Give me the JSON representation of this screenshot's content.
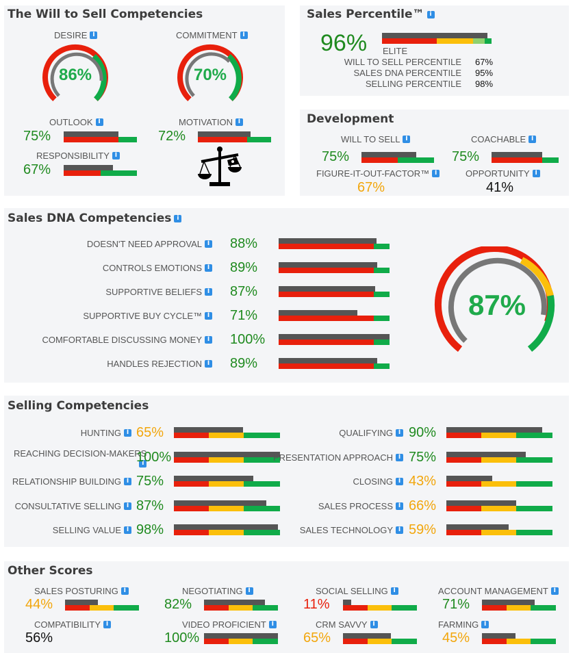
{
  "colors": {
    "red": "#e8200c",
    "orange": "#fbbf0b",
    "green": "#10ab49",
    "gray": "#555555",
    "light_green": "#8fd16f",
    "info": "#2f8ee5"
  },
  "will_to_sell": {
    "title": "The Will to Sell Competencies",
    "desire": {
      "label": "DESIRE",
      "value": "86%",
      "fraction": 0.86
    },
    "commitment": {
      "label": "COMMITMENT",
      "value": "70%",
      "fraction": 0.7
    },
    "outlook": {
      "label": "OUTLOOK",
      "value": "75%",
      "fraction": 0.75
    },
    "motivation": {
      "label": "MOTIVATION",
      "value": "72%",
      "fraction": 0.72
    },
    "responsibility": {
      "label": "RESPONSIBILITY",
      "value": "67%",
      "fraction": 0.67
    },
    "scale_icon": "balance-scale-icon"
  },
  "percentile": {
    "title": "Sales Percentile™",
    "value": "96%",
    "fraction": 0.96,
    "tier": "ELITE",
    "rows": [
      {
        "label": "WILL TO SELL PERCENTILE",
        "value": "67%"
      },
      {
        "label": "SALES DNA PERCENTILE",
        "value": "95%"
      },
      {
        "label": "SELLING PERCENTILE",
        "value": "98%"
      }
    ]
  },
  "development": {
    "title": "Development",
    "will_to_sell": {
      "label": "WILL TO SELL",
      "value": "75%",
      "fraction": 0.75
    },
    "coachable": {
      "label": "COACHABLE",
      "value": "75%",
      "fraction": 0.75
    },
    "figure_it_out": {
      "label": "FIGURE-IT-OUT-FACTOR™",
      "value": "67%"
    },
    "opportunity": {
      "label": "OPPORTUNITY",
      "value": "41%"
    }
  },
  "sales_dna": {
    "title": "Sales DNA Competencies",
    "overall": "87%",
    "overall_fraction": 0.87,
    "items": [
      {
        "label": "DOESN'T NEED APPROVAL",
        "value": "88%",
        "fraction": 0.88
      },
      {
        "label": "CONTROLS EMOTIONS",
        "value": "89%",
        "fraction": 0.89
      },
      {
        "label": "SUPPORTIVE BELIEFS",
        "value": "87%",
        "fraction": 0.87
      },
      {
        "label": "SUPPORTIVE BUY CYCLE™",
        "value": "71%",
        "fraction": 0.71
      },
      {
        "label": "COMFORTABLE DISCUSSING MONEY",
        "value": "100%",
        "fraction": 1.0
      },
      {
        "label": "HANDLES REJECTION",
        "value": "89%",
        "fraction": 0.89
      }
    ]
  },
  "selling": {
    "title": "Selling Competencies",
    "left": [
      {
        "label": "HUNTING",
        "value": "65%",
        "fraction": 0.65,
        "color": "orange"
      },
      {
        "label": "REACHING DECISION-MAKERS",
        "value": "100%",
        "fraction": 1.0,
        "color": "green"
      },
      {
        "label": "RELATIONSHIP BUILDING",
        "value": "75%",
        "fraction": 0.75,
        "color": "green"
      },
      {
        "label": "CONSULTATIVE SELLING",
        "value": "87%",
        "fraction": 0.87,
        "color": "green"
      },
      {
        "label": "SELLING VALUE",
        "value": "98%",
        "fraction": 0.98,
        "color": "green"
      }
    ],
    "right": [
      {
        "label": "QUALIFYING",
        "value": "90%",
        "fraction": 0.9,
        "color": "green"
      },
      {
        "label": "PRESENTATION APPROACH",
        "value": "75%",
        "fraction": 0.75,
        "color": "green"
      },
      {
        "label": "CLOSING",
        "value": "43%",
        "fraction": 0.43,
        "color": "orange"
      },
      {
        "label": "SALES PROCESS",
        "value": "66%",
        "fraction": 0.66,
        "color": "orange"
      },
      {
        "label": "SALES TECHNOLOGY",
        "value": "59%",
        "fraction": 0.59,
        "color": "orange"
      }
    ]
  },
  "other": {
    "title": "Other Scores",
    "items": [
      {
        "label": "SALES POSTURING",
        "value": "44%",
        "fraction": 0.44,
        "color": "orange"
      },
      {
        "label": "NEGOTIATING",
        "value": "82%",
        "fraction": 0.82,
        "color": "green"
      },
      {
        "label": "SOCIAL SELLING",
        "value": "11%",
        "fraction": 0.11,
        "color": "red"
      },
      {
        "label": "ACCOUNT MANAGEMENT",
        "value": "71%",
        "fraction": 0.71,
        "color": "green"
      },
      {
        "label": "COMPATIBILITY",
        "value": "56%",
        "fraction": null,
        "color": "black"
      },
      {
        "label": "VIDEO PROFICIENT",
        "value": "100%",
        "fraction": 1.0,
        "color": "green"
      },
      {
        "label": "CRM SAVVY",
        "value": "65%",
        "fraction": 0.65,
        "color": "orange"
      },
      {
        "label": "FARMING",
        "value": "45%",
        "fraction": 0.45,
        "color": "orange"
      }
    ]
  }
}
